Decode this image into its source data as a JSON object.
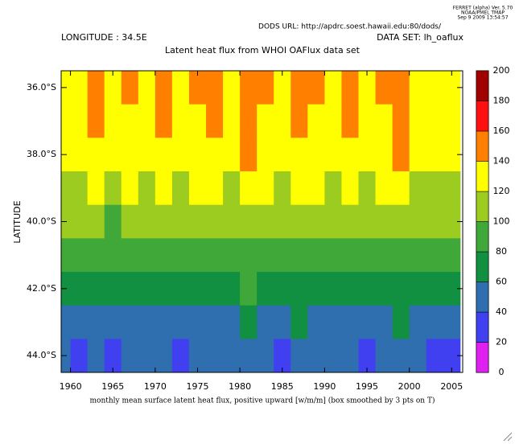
{
  "chart_data": {
    "type": "contour",
    "header": [
      "FERRET (alpha) Ver. 5.70",
      "NOAA/PMEL TMAP",
      "Sep  9 2009 13:54:57"
    ],
    "url": "DODS URL: http://apdrc.soest.hawaii.edu:80/dods/",
    "longitude": "LONGITUDE : 34.5E",
    "dataset": "DATA SET: lh_oaflux",
    "title": "Latent heat flux from WHOI OAFlux data set",
    "ylabel": "LATITUDE",
    "xlabel": "monthly mean surface latent heat flux, positive upward [w/m/m] (box smoothed by 3 pts on T)",
    "xlim": [
      1958.9,
      2006.3
    ],
    "xticks": [
      1960,
      1965,
      1970,
      1975,
      1980,
      1985,
      1990,
      1995,
      2000,
      2005
    ],
    "ylim": [
      -44.5,
      -35.5
    ],
    "yticks": [
      {
        "value": -36,
        "label": "36.0°S"
      },
      {
        "value": -38,
        "label": "38.0°S"
      },
      {
        "value": -40,
        "label": "40.0°S"
      },
      {
        "value": -42,
        "label": "42.0°S"
      },
      {
        "value": -44,
        "label": "44.0°S"
      }
    ],
    "levels": [
      0,
      20,
      40,
      60,
      80,
      100,
      120,
      140,
      160,
      180,
      200
    ],
    "colors": [
      "#e020f0",
      "#4040f0",
      "#2f6fb0",
      "#109040",
      "#40a838",
      "#9ccc20",
      "#ffff00",
      "#ff8000",
      "#ff1010",
      "#a00000"
    ],
    "x": [
      1959,
      1961,
      1963,
      1965,
      1967,
      1969,
      1971,
      1973,
      1975,
      1977,
      1979,
      1981,
      1983,
      1985,
      1987,
      1989,
      1991,
      1993,
      1995,
      1997,
      1999,
      2001,
      2003,
      2005
    ],
    "y": [
      -36,
      -37,
      -38,
      -39,
      -40,
      -41,
      -42,
      -43,
      -44
    ],
    "z": [
      [
        138,
        132,
        145,
        128,
        141,
        136,
        150,
        133,
        142,
        147,
        139,
        152,
        144,
        135,
        149,
        141,
        137,
        146,
        132,
        143,
        150,
        138,
        134,
        129
      ],
      [
        135,
        128,
        140,
        125,
        137,
        131,
        146,
        129,
        138,
        143,
        134,
        148,
        139,
        131,
        144,
        137,
        133,
        141,
        128,
        139,
        146,
        134,
        130,
        126
      ],
      [
        129,
        122,
        134,
        120,
        131,
        126,
        139,
        124,
        132,
        137,
        128,
        141,
        133,
        126,
        138,
        131,
        127,
        135,
        123,
        133,
        140,
        128,
        125,
        121
      ],
      [
        119,
        113,
        124,
        111,
        121,
        117,
        128,
        115,
        122,
        126,
        118,
        130,
        123,
        117,
        127,
        121,
        118,
        125,
        114,
        123,
        129,
        119,
        116,
        113
      ],
      [
        106,
        101,
        110,
        99,
        108,
        104,
        114,
        102,
        109,
        112,
        105,
        115,
        110,
        104,
        113,
        108,
        105,
        111,
        102,
        109,
        114,
        106,
        104,
        101
      ],
      [
        92,
        87,
        95,
        85,
        93,
        89,
        97,
        88,
        94,
        96,
        90,
        99,
        95,
        89,
        97,
        92,
        90,
        95,
        88,
        94,
        98,
        91,
        89,
        86
      ],
      [
        74,
        70,
        77,
        68,
        75,
        71,
        78,
        70,
        76,
        77,
        72,
        80,
        76,
        71,
        79,
        74,
        72,
        77,
        70,
        75,
        79,
        73,
        71,
        69
      ],
      [
        56,
        52,
        58,
        50,
        55,
        53,
        59,
        52,
        57,
        58,
        54,
        61,
        57,
        53,
        60,
        55,
        54,
        58,
        51,
        56,
        60,
        55,
        53,
        50
      ],
      [
        42,
        39,
        44,
        37,
        41,
        40,
        45,
        38,
        43,
        44,
        40,
        46,
        42,
        39,
        45,
        41,
        40,
        43,
        38,
        42,
        45,
        41,
        39,
        37
      ]
    ]
  }
}
